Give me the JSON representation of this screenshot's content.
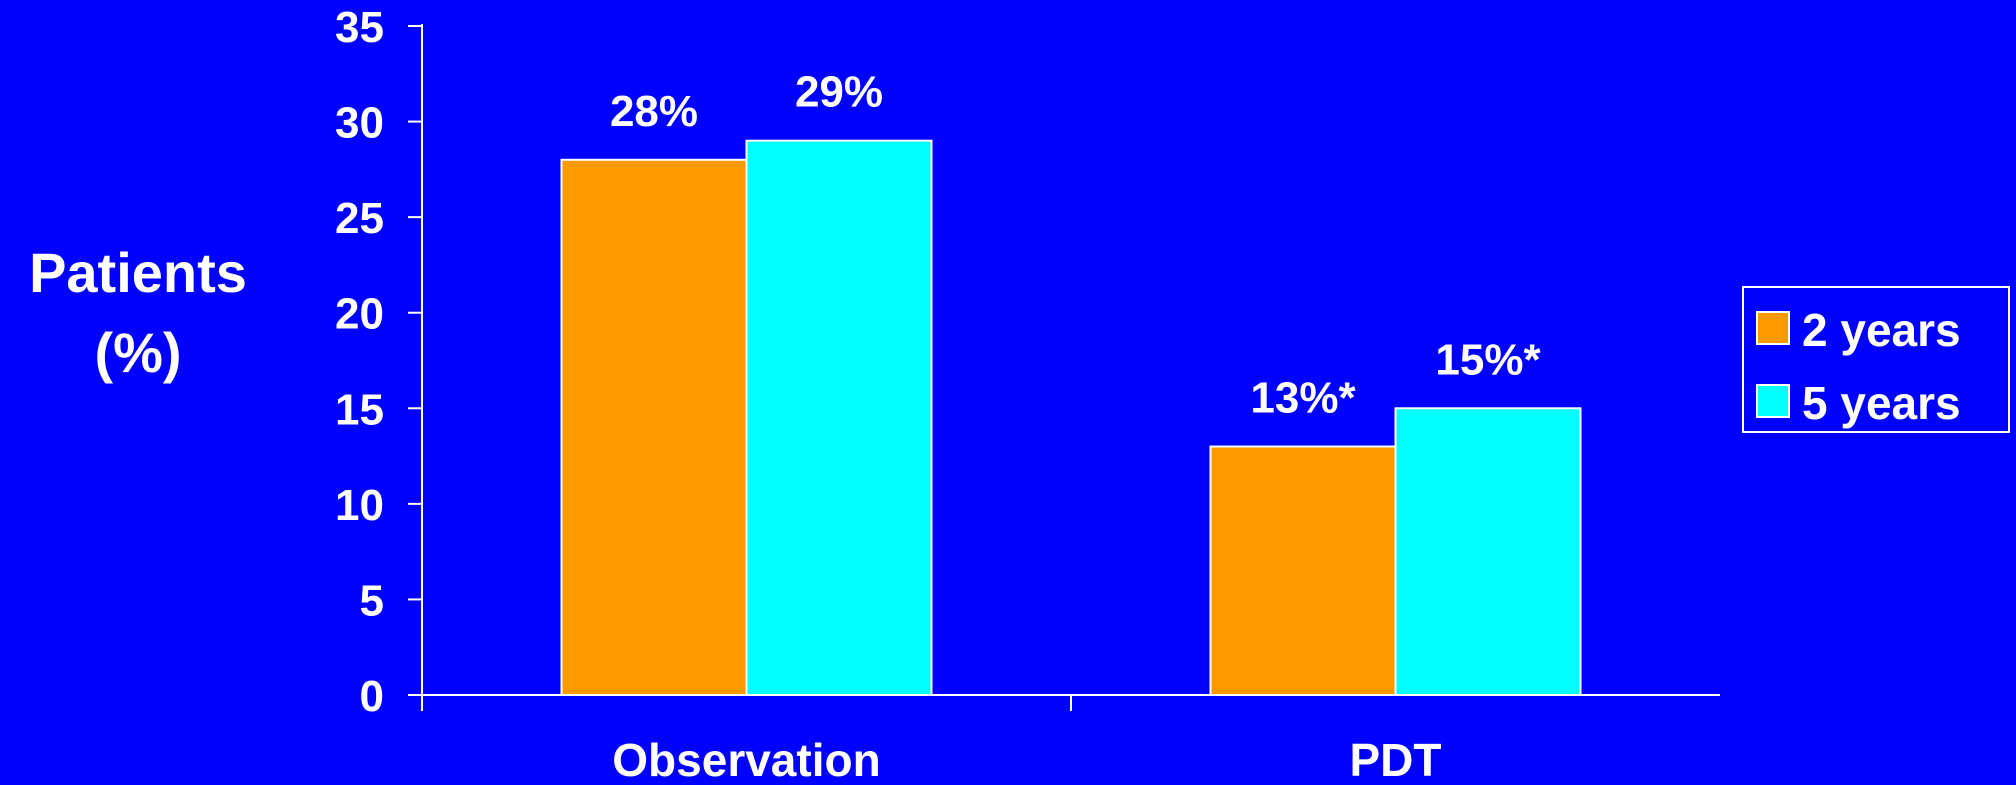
{
  "chart_data": {
    "type": "bar",
    "title": "",
    "ylabel_lines": [
      "Patients",
      "(%)"
    ],
    "xlabel": "",
    "ylim": [
      0,
      35
    ],
    "yticks": [
      0,
      5,
      10,
      15,
      20,
      25,
      30,
      35
    ],
    "categories": [
      "Observation",
      "PDT"
    ],
    "series": [
      {
        "name": "2 years",
        "color": "#ff9900",
        "values": [
          28,
          13
        ],
        "labels": [
          "28%",
          "13%*"
        ]
      },
      {
        "name": "5 years",
        "color": "#00ffff",
        "values": [
          29,
          15
        ],
        "labels": [
          "29%",
          "15%*"
        ]
      }
    ],
    "legend_position": "right",
    "grid": false,
    "background": "#0000ff",
    "text_color": "#ffffff"
  }
}
